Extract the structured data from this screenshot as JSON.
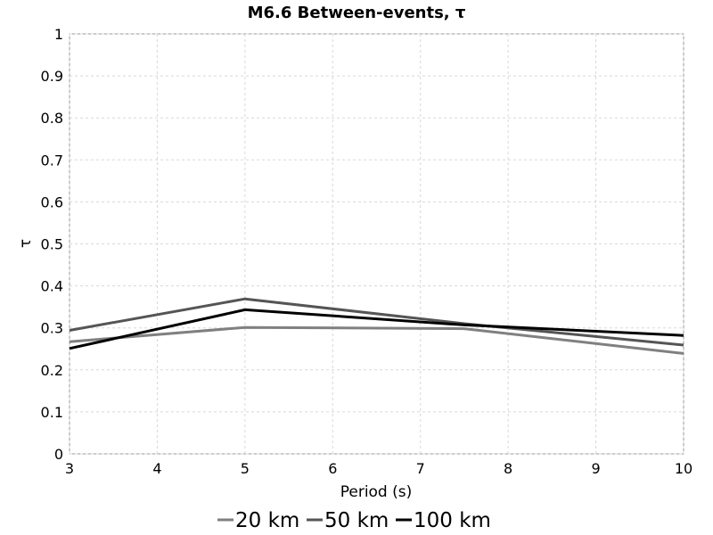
{
  "chart_data": {
    "type": "line",
    "title": "M6.6 Between-events, τ",
    "xlabel": "Period (s)",
    "ylabel": "τ",
    "xlim": [
      3,
      10
    ],
    "ylim": [
      0,
      1
    ],
    "xticks": [
      "3",
      "4",
      "5",
      "6",
      "7",
      "8",
      "9",
      "10"
    ],
    "yticks": [
      "0",
      "0.1",
      "0.2",
      "0.3",
      "0.4",
      "0.5",
      "0.6",
      "0.7",
      "0.8",
      "0.9",
      "1"
    ],
    "grid": true,
    "legend_position": "bottom",
    "series": [
      {
        "name": "20 km",
        "color": "#808080",
        "x": [
          3,
          5,
          7.5,
          10
        ],
        "y": [
          0.267,
          0.301,
          0.298,
          0.239
        ]
      },
      {
        "name": "50 km",
        "color": "#555555",
        "x": [
          3,
          5,
          7.5,
          10
        ],
        "y": [
          0.294,
          0.369,
          0.31,
          0.259
        ]
      },
      {
        "name": "100 km",
        "color": "#000000",
        "x": [
          3,
          5,
          7.5,
          10
        ],
        "y": [
          0.251,
          0.343,
          0.307,
          0.282
        ]
      }
    ]
  }
}
